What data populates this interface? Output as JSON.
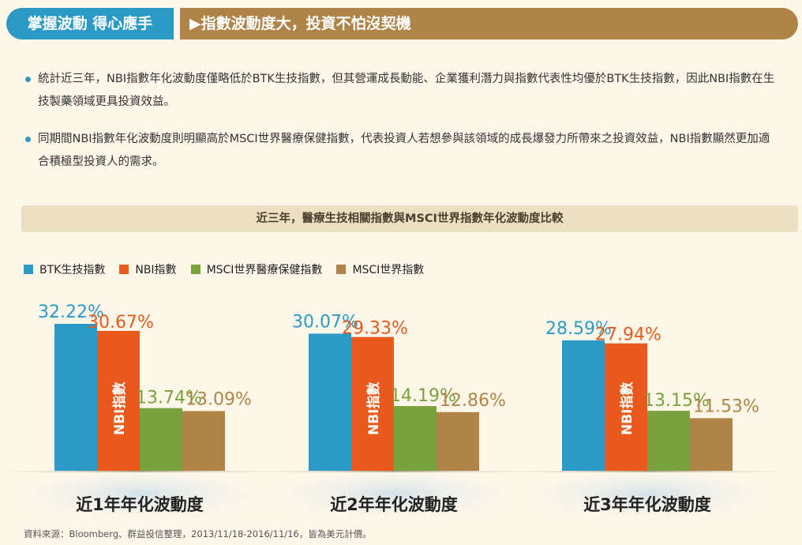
{
  "header": {
    "left_title": "掌握波動 得心應手",
    "right_title": "▶指數波動度大，投資不怕沒契機"
  },
  "bullets": [
    "統計近三年，NBI指數年化波動度僅略低於BTK生技指數，但其營運成長動能、企業獲利潛力與指數代表性均優於BTK生技指數，因此NBI指數在生技製藥領域更具投資效益。",
    "同期間NBI指數年化波動度則明顯高於MSCI世界醫療保健指數，代表投資人若想參與該領域的成長爆發力所帶來之投資效益，NBI指數顯然更加適合積極型投資人的需求。"
  ],
  "caption": "近三年，醫療生技相關指數與MSCI世界指數年化波動度比較",
  "source": "資料來源：Bloomberg、群益投信整理，2013/11/18-2016/11/16，皆為美元計價。",
  "colors": {
    "btk": "#2c9ac7",
    "nbi": "#e8591b",
    "msci_health": "#79a13d",
    "msci_world": "#b08447"
  },
  "chart_data": {
    "type": "bar",
    "categories": [
      "近1年年化波動度",
      "近2年年化波動度",
      "近3年年化波動度"
    ],
    "series": [
      {
        "name": "BTK生技指數",
        "values": [
          32.22,
          30.07,
          28.59
        ],
        "labels": [
          "32.22%",
          "30.07%",
          "28.59%"
        ]
      },
      {
        "name": "NBI指數",
        "values": [
          30.67,
          29.33,
          27.94
        ],
        "labels": [
          "30.67%",
          "29.33%",
          "27.94%"
        ],
        "bar_text": "NBI指數"
      },
      {
        "name": "MSCI世界醫療保健指數",
        "values": [
          13.74,
          14.19,
          13.15
        ],
        "labels": [
          "13.74%",
          "14.19%",
          "13.15%"
        ]
      },
      {
        "name": "MSCI世界指數",
        "values": [
          13.09,
          12.86,
          11.53
        ],
        "labels": [
          "13.09%",
          "12.86%",
          "11.53%"
        ]
      }
    ],
    "ylim": [
      0,
      40
    ],
    "grid": false,
    "legend": "top-left"
  }
}
